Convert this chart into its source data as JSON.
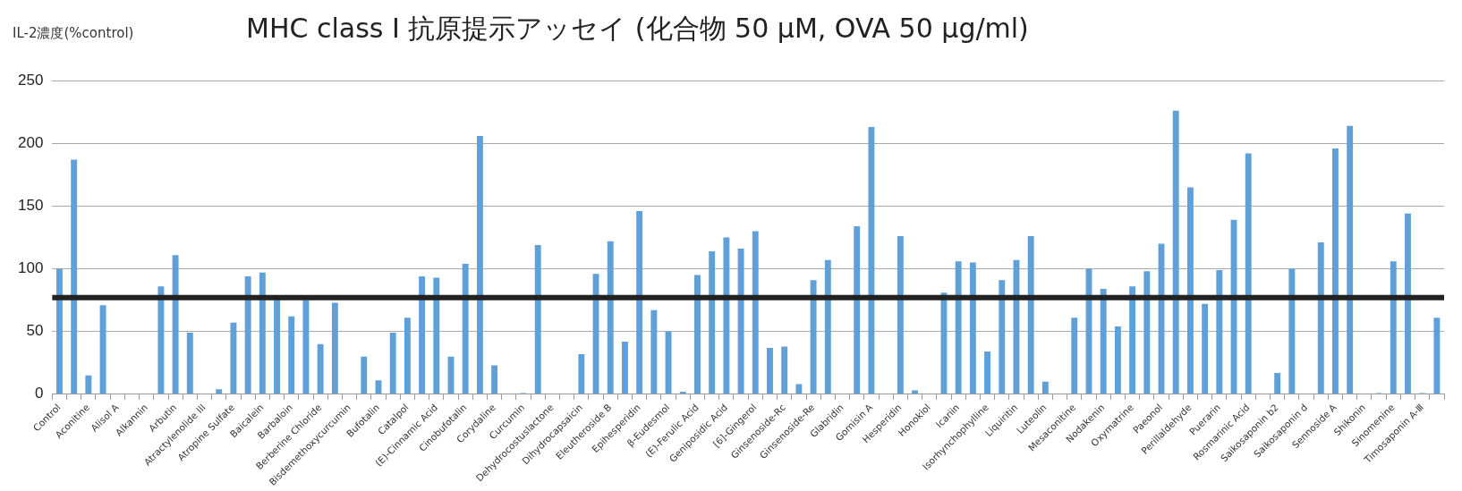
{
  "chart_data": {
    "type": "bar",
    "title": "MHC class I 抗原提示アッセイ (化合物  50 μM, OVA 50 μg/ml)",
    "ylabel": "IL-2濃度(%control)",
    "categories": [
      "Control",
      null,
      "Aconitine",
      null,
      "Alisol A",
      null,
      "Alkannin",
      null,
      "Arbutin",
      null,
      "Atractylenolide III",
      null,
      "Atropine Sulfate",
      null,
      "Baicalein",
      null,
      "Barbaloin",
      null,
      "Berberine Chloride",
      null,
      "Bisdemethoxycurcumin",
      null,
      "Bufotalin",
      null,
      "Catalpol",
      null,
      "(E)-Cinnamic Acid",
      null,
      "Cinobufotalin",
      null,
      "Corydaline",
      null,
      "Curcumin",
      null,
      "Dehydrocostuslactone",
      null,
      "Dihydrocapsaicin",
      null,
      "Eleutheroside B",
      null,
      "Epihesperidin",
      null,
      "β-Eudesmol",
      null,
      "(E)-Ferulic Acid",
      null,
      "Geniposidic Acid",
      null,
      "[6]-Gingerol",
      null,
      "Ginsenoside-Rc",
      null,
      "Ginsenoside-Re",
      null,
      "Glabridin",
      null,
      "Gomisin A",
      null,
      "Hesperidin",
      null,
      "Honokiol",
      null,
      "Icariin",
      null,
      "Isorhynchophylline",
      null,
      "Liquiritin",
      null,
      "Luteolin",
      null,
      "Mesaconitine",
      null,
      "Nodakenin",
      null,
      "Oxymatrine",
      null,
      "Paeonol",
      null,
      "Perillaldehyde",
      null,
      "Puerarin",
      null,
      "Rosmarinic Acid",
      null,
      "Saikosaponin b2",
      null,
      "Saikosaponin d",
      null,
      "Sennoside A",
      null,
      "Shikonin",
      null,
      "Sinomenine",
      null,
      "Timosaponin A-Ⅲ",
      null
    ],
    "series": [
      {
        "color": "#5fa0d8",
        "values": [
          100,
          187,
          15,
          71,
          0,
          0,
          0,
          86,
          111,
          49,
          0,
          4,
          57,
          94,
          97,
          76,
          62,
          75,
          40,
          73,
          0,
          30,
          11,
          49,
          61,
          94,
          93,
          30,
          104,
          206,
          23,
          0,
          1,
          119,
          0,
          0,
          32,
          96,
          122,
          42,
          146,
          67,
          50,
          2,
          95,
          114,
          125,
          116,
          130,
          37,
          38,
          8,
          91,
          107,
          0,
          134,
          213,
          0,
          126,
          3,
          0,
          81,
          106,
          105,
          34,
          91,
          107,
          126,
          10,
          0,
          61,
          100,
          84,
          54,
          86,
          98,
          120,
          226,
          165,
          72,
          99,
          139,
          192,
          0,
          17,
          100,
          0,
          121,
          196,
          214,
          0,
          1,
          106,
          144,
          1,
          61
        ]
      }
    ],
    "ylim": [
      0,
      250
    ],
    "yticks": [
      0,
      50,
      100,
      150,
      200,
      250
    ],
    "grid": "y",
    "ref_lines": [
      {
        "axis": "y",
        "value": 77,
        "color": "#222222"
      }
    ]
  }
}
